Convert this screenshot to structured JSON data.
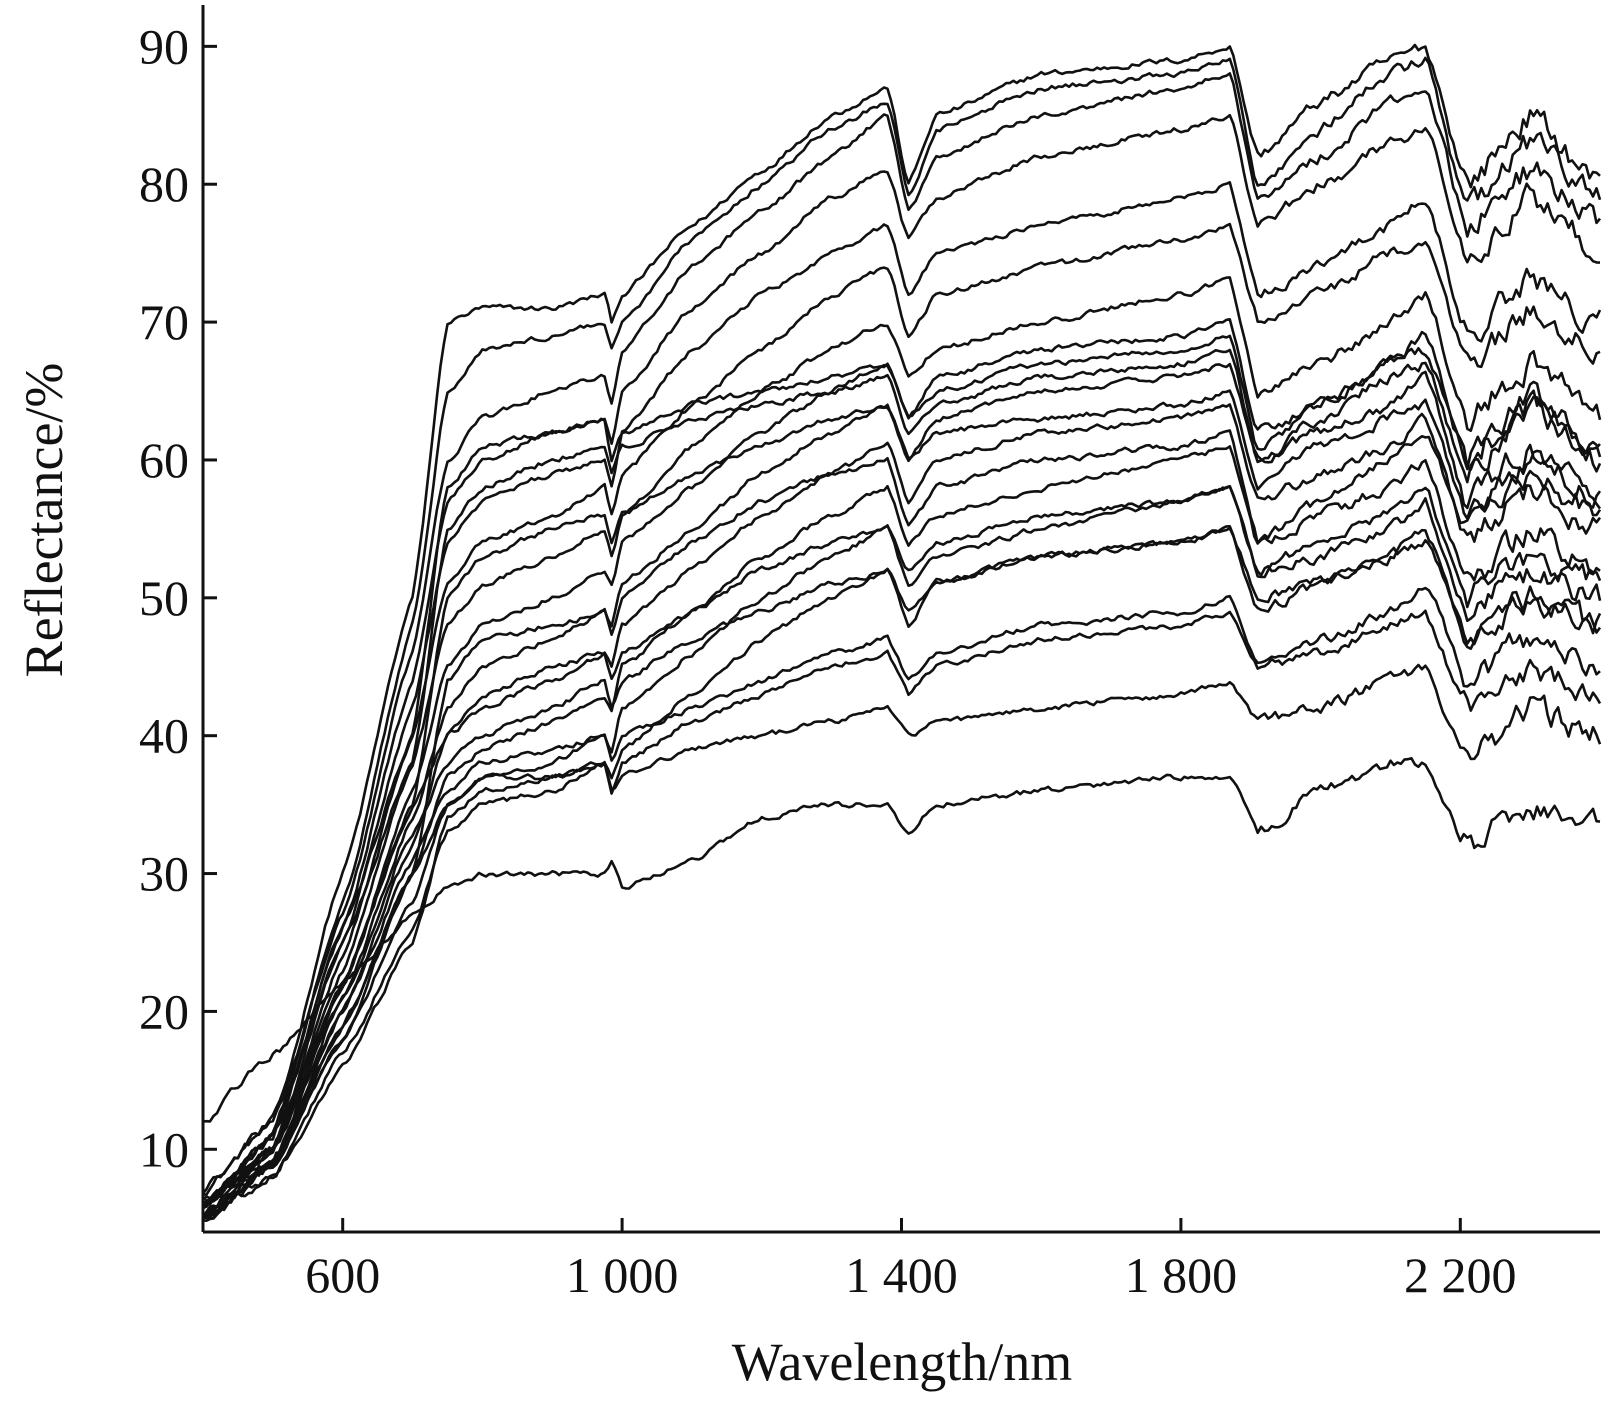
{
  "chart_data": {
    "type": "line",
    "xlabel": "Wavelength/nm",
    "ylabel": "Reflectance/%",
    "xlim": [
      400,
      2400
    ],
    "ylim": [
      4,
      93
    ],
    "x_ticks": [
      600,
      1000,
      1400,
      1800,
      2200
    ],
    "x_tick_labels": [
      "600",
      "1 000",
      "1 400",
      "1 800",
      "2 200"
    ],
    "y_ticks": [
      10,
      20,
      30,
      40,
      50,
      60,
      70,
      80,
      90
    ],
    "y_tick_labels": [
      "10",
      "20",
      "30",
      "40",
      "50",
      "60",
      "70",
      "80",
      "90"
    ],
    "grid": false,
    "legend": "none",
    "line_color": "#111111",
    "wavelengths": [
      400,
      500,
      600,
      700,
      750,
      800,
      900,
      975,
      985,
      1000,
      1100,
      1200,
      1300,
      1380,
      1410,
      1450,
      1600,
      1800,
      1870,
      1910,
      2000,
      2100,
      2150,
      2210,
      2300,
      2400
    ],
    "series": [
      {
        "values": [
          7,
          12,
          30,
          50,
          70,
          71,
          71,
          72,
          70,
          72,
          77,
          81,
          85,
          87,
          80,
          85,
          88,
          89,
          90,
          82,
          86,
          89,
          90,
          80,
          85,
          80
        ]
      },
      {
        "values": [
          6,
          11,
          28,
          48,
          65,
          68,
          69,
          70,
          68,
          70,
          76,
          80,
          84,
          86,
          79,
          84,
          87,
          88,
          89,
          80,
          84,
          88,
          89,
          78,
          83,
          79
        ]
      },
      {
        "values": [
          7,
          12,
          27,
          46,
          60,
          63,
          65,
          66,
          64,
          68,
          74,
          78,
          82,
          85,
          78,
          82,
          85,
          87,
          88,
          79,
          82,
          86,
          87,
          77,
          81,
          77
        ]
      },
      {
        "values": [
          6,
          11,
          26,
          44,
          57,
          60,
          62,
          63,
          61,
          65,
          71,
          75,
          79,
          81,
          76,
          79,
          82,
          84,
          85,
          77,
          80,
          83,
          84,
          75,
          79,
          75
        ]
      },
      {
        "values": [
          6,
          11,
          25,
          42,
          54,
          57,
          59,
          60,
          58,
          62,
          68,
          72,
          75,
          77,
          72,
          75,
          77,
          79,
          80,
          72,
          74,
          77,
          79,
          69,
          73,
          70
        ]
      },
      {
        "values": [
          6,
          10,
          24,
          40,
          51,
          54,
          56,
          58,
          56,
          59,
          64,
          68,
          72,
          74,
          69,
          72,
          74,
          76,
          77,
          70,
          72,
          75,
          76,
          67,
          71,
          68
        ]
      },
      {
        "values": [
          5,
          10,
          23,
          38,
          48,
          51,
          53,
          55,
          53,
          56,
          61,
          65,
          68,
          70,
          66,
          68,
          70,
          72,
          73,
          65,
          67,
          70,
          72,
          63,
          67,
          63
        ]
      },
      {
        "values": [
          5,
          10,
          22,
          36,
          45,
          48,
          50,
          52,
          51,
          54,
          58,
          62,
          65,
          67,
          63,
          66,
          68,
          69,
          70,
          62,
          64,
          67,
          69,
          60,
          64,
          60
        ]
      },
      {
        "values": [
          5,
          9,
          21,
          34,
          42,
          45,
          47,
          49,
          48,
          51,
          55,
          59,
          62,
          64,
          60,
          63,
          65,
          66,
          67,
          60,
          62,
          64,
          66,
          57,
          61,
          57
        ]
      },
      {
        "values": [
          5,
          9,
          20,
          32,
          40,
          42,
          44,
          46,
          45,
          48,
          52,
          56,
          59,
          61,
          57,
          60,
          62,
          63,
          64,
          57,
          59,
          61,
          63,
          54,
          58,
          55
        ]
      },
      {
        "values": [
          5,
          9,
          19,
          30,
          37,
          39,
          41,
          43,
          42,
          45,
          49,
          53,
          56,
          58,
          54,
          56,
          58,
          60,
          61,
          54,
          56,
          58,
          60,
          51,
          55,
          52
        ]
      },
      {
        "values": [
          5,
          9,
          18,
          28,
          35,
          37,
          38,
          40,
          39,
          42,
          46,
          50,
          53,
          55,
          51,
          53,
          55,
          57,
          58,
          52,
          53,
          55,
          57,
          49,
          52,
          50
        ]
      },
      {
        "values": [
          5,
          8,
          17,
          26,
          33,
          35,
          36,
          38,
          37,
          39,
          43,
          47,
          50,
          52,
          48,
          51,
          53,
          54,
          55,
          50,
          51,
          53,
          55,
          47,
          50,
          48
        ]
      },
      {
        "values": [
          5,
          8,
          16,
          25,
          34,
          36,
          37,
          38,
          36,
          38,
          41,
          43,
          45,
          46,
          43,
          45,
          47,
          48,
          49,
          45,
          46,
          48,
          49,
          42,
          45,
          43
        ]
      },
      {
        "values": [
          6,
          9,
          18,
          30,
          44,
          47,
          48,
          49,
          47,
          50,
          54,
          57,
          59,
          60,
          55,
          58,
          60,
          61,
          62,
          54,
          57,
          60,
          62,
          55,
          59,
          56
        ]
      },
      {
        "values": [
          6,
          10,
          22,
          35,
          40,
          43,
          45,
          46,
          44,
          46,
          49,
          52,
          54,
          55,
          52,
          54,
          56,
          57,
          58,
          52,
          54,
          56,
          58,
          50,
          53,
          51
        ]
      },
      {
        "values": [
          6,
          10,
          21,
          33,
          38,
          40,
          42,
          44,
          42,
          44,
          47,
          49,
          51,
          52,
          49,
          51,
          53,
          54,
          55,
          49,
          51,
          53,
          54,
          47,
          50,
          48
        ]
      },
      {
        "values": [
          6,
          9,
          20,
          31,
          36,
          38,
          39,
          40,
          38,
          40,
          42,
          44,
          46,
          47,
          44,
          46,
          48,
          49,
          50,
          45,
          47,
          49,
          51,
          44,
          47,
          45
        ]
      },
      {
        "values": [
          5,
          9,
          19,
          30,
          35,
          37,
          37,
          38,
          36,
          37,
          39,
          40,
          41,
          42,
          40,
          41,
          42,
          43,
          44,
          41,
          42,
          44,
          45,
          38,
          42,
          40
        ]
      },
      {
        "values": [
          6,
          11,
          26,
          40,
          58,
          61,
          62,
          63,
          60,
          62,
          64,
          65,
          66,
          67,
          63,
          65,
          67,
          68,
          69,
          61,
          64,
          67,
          68,
          60,
          65,
          61
        ]
      },
      {
        "values": [
          6,
          10,
          25,
          38,
          55,
          58,
          60,
          61,
          59,
          61,
          63,
          64,
          65,
          66,
          62,
          64,
          66,
          67,
          68,
          60,
          63,
          66,
          67,
          59,
          64,
          60
        ]
      },
      {
        "values": [
          5,
          9,
          22,
          35,
          50,
          53,
          55,
          56,
          54,
          56,
          59,
          61,
          63,
          64,
          60,
          62,
          63,
          64,
          65,
          58,
          61,
          63,
          64,
          56,
          60,
          57
        ]
      },
      {
        "values": [
          12,
          17,
          22,
          27,
          29,
          30,
          30,
          30,
          31,
          29,
          31,
          34,
          35,
          35,
          33,
          35,
          36,
          37,
          37,
          33,
          36,
          38,
          38,
          32,
          35,
          34
        ]
      }
    ]
  }
}
